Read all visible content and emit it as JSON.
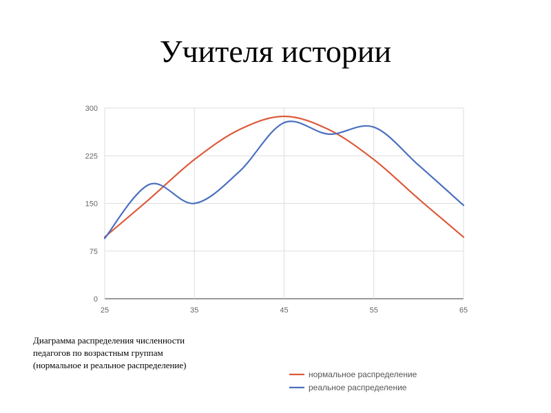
{
  "slide": {
    "title": "Учителя истории",
    "caption": [
      "Диаграмма распределения численности",
      "педагогов по возрастным группам",
      "(нормальное и реальное распределение)"
    ]
  },
  "chart_data": {
    "type": "line",
    "title": "",
    "xlabel": "",
    "ylabel": "",
    "xlim": [
      25,
      65
    ],
    "ylim": [
      0,
      300
    ],
    "x_ticks": [
      25,
      35,
      45,
      55,
      65
    ],
    "y_ticks": [
      0,
      75,
      150,
      225,
      300
    ],
    "grid": true,
    "smooth": true,
    "legend_position": "bottom-right",
    "series": [
      {
        "name": "нормальное распределение",
        "color": "#dc5a3a",
        "x": [
          25,
          30,
          35,
          40,
          45,
          50,
          55,
          60,
          65
        ],
        "y": [
          97,
          157,
          219,
          266,
          287,
          266,
          219,
          157,
          97
        ]
      },
      {
        "name": "реальное распределение",
        "color": "#4a6fbf",
        "x": [
          25,
          30,
          35,
          40,
          45,
          50,
          55,
          60,
          65
        ],
        "y": [
          95,
          180,
          150,
          200,
          277,
          259,
          270,
          210,
          147
        ]
      }
    ]
  }
}
